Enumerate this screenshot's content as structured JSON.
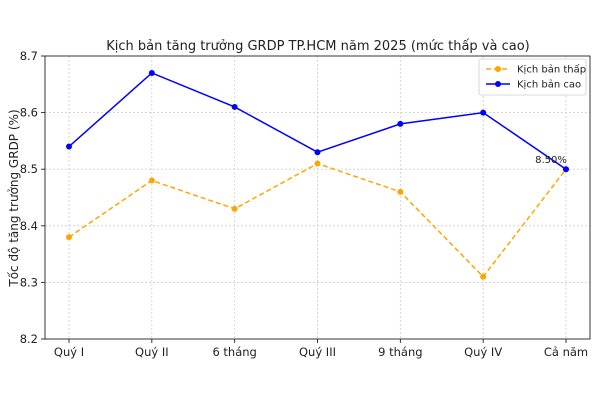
{
  "chart_data": {
    "type": "line",
    "title": "Kịch bản tăng trưởng GRDP TP.HCM năm 2025 (mức thấp và cao)",
    "xlabel": "",
    "ylabel": "Tốc độ tăng trưởng GRDP (%)",
    "categories": [
      "Quý I",
      "Quý II",
      "6 tháng",
      "Quý III",
      "9 tháng",
      "Quý IV",
      "Cả năm"
    ],
    "ylim": [
      8.2,
      8.7
    ],
    "yticks": [
      "8.2",
      "8.3",
      "8.4",
      "8.5",
      "8.6",
      "8.7"
    ],
    "grid": true,
    "legend_position": "top-right",
    "series": [
      {
        "name": "Kịch bản thấp",
        "values": [
          8.38,
          8.48,
          8.43,
          8.51,
          8.46,
          8.31,
          8.5
        ],
        "color": "#FFA500",
        "style": "dashed"
      },
      {
        "name": "Kịch bản cao",
        "values": [
          8.54,
          8.67,
          8.61,
          8.53,
          8.58,
          8.6,
          8.5
        ],
        "color": "#0000FF",
        "style": "solid"
      }
    ],
    "annotations": [
      {
        "text": "8.50%",
        "category": "Cả năm",
        "value": 8.5
      }
    ]
  }
}
